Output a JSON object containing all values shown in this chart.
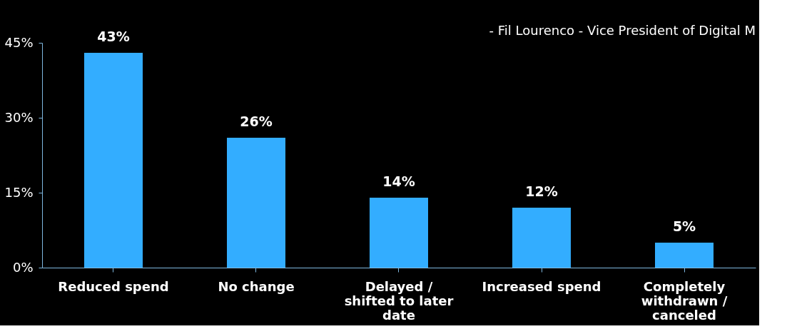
{
  "chart_data": {
    "type": "bar",
    "categories": [
      "Reduced spend",
      "No change",
      "Delayed / shifted to later date",
      "Increased spend",
      "Completely withdrawn / canceled"
    ],
    "values": [
      43,
      26,
      14,
      12,
      5
    ],
    "value_labels": [
      "43%",
      "26%",
      "14%",
      "12%",
      "5%"
    ],
    "color": "#33adff",
    "ylim": [
      0,
      45
    ],
    "yticks": [
      {
        "value": 0,
        "label": "0%"
      },
      {
        "value": 15,
        "label": "15%"
      },
      {
        "value": 30,
        "label": "30%"
      },
      {
        "value": 45,
        "label": "45%"
      }
    ],
    "grid": false,
    "annotations": [
      "- Fil Lourenco - Vice President of Digital M"
    ]
  }
}
